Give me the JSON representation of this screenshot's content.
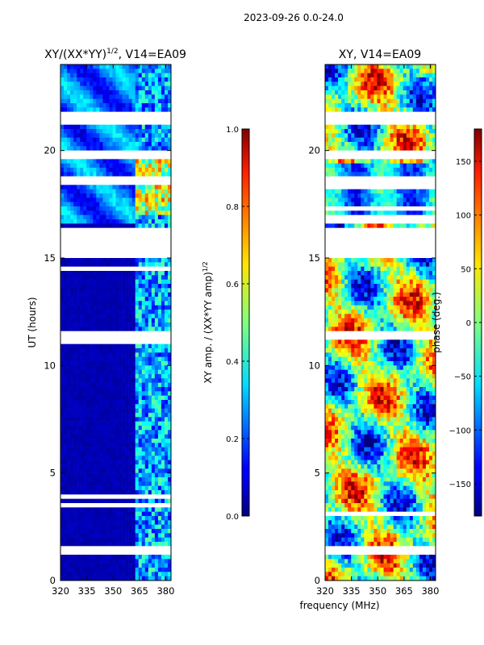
{
  "figure": {
    "suptitle": "2023-09-26 0.0-24.0",
    "xlabel": "frequency (MHz)"
  },
  "chart_data": [
    {
      "type": "heatmap",
      "title": "XY/(XX*YY)",
      "title_exponent": "1/2",
      "title_suffix": ", V14=EA09",
      "xlabel": "",
      "ylabel": "UT (hours)",
      "xlim": [
        320,
        383
      ],
      "ylim": [
        0,
        24
      ],
      "xticks": [
        "320",
        "335",
        "350",
        "365",
        "380"
      ],
      "xtick_values": [
        320,
        335,
        350,
        365,
        380
      ],
      "yticks": [
        "0",
        "5",
        "10",
        "15",
        "20"
      ],
      "ytick_values": [
        0,
        5,
        10,
        15,
        20
      ],
      "colorbar": {
        "label": "XY amp. / (XX*YY amp)",
        "label_exponent": "1/2",
        "range": [
          0.0,
          1.0
        ],
        "ticks": [
          "0.0",
          "0.2",
          "0.4",
          "0.6",
          "0.8",
          "1.0"
        ],
        "tick_values": [
          0.0,
          0.2,
          0.4,
          0.6,
          0.8,
          1.0
        ],
        "colormap": "jet"
      },
      "flagged_ut_gaps": [
        [
          15.0,
          16.3
        ],
        [
          1.2,
          1.6
        ],
        [
          11.2,
          11.5
        ],
        [
          21.2,
          21.7
        ],
        [
          19.7,
          19.9
        ],
        [
          18.5,
          18.8
        ]
      ],
      "rfi_band_mhz": [
        362,
        383
      ]
    },
    {
      "type": "heatmap",
      "title": "XY, V14=EA09",
      "xlabel": "",
      "ylabel": "",
      "xlim": [
        320,
        383
      ],
      "ylim": [
        0,
        24
      ],
      "xticks": [
        "320",
        "335",
        "350",
        "365",
        "380"
      ],
      "xtick_values": [
        320,
        335,
        350,
        365,
        380
      ],
      "yticks": [
        "0",
        "5",
        "10",
        "15",
        "20"
      ],
      "ytick_values": [
        0,
        5,
        10,
        15,
        20
      ],
      "colorbar": {
        "label": "phase (deg.)",
        "range": [
          -180,
          180
        ],
        "ticks": [
          "−150",
          "−100",
          "−50",
          "0",
          "50",
          "100",
          "150"
        ],
        "tick_values": [
          -150,
          -100,
          -50,
          0,
          50,
          100,
          150
        ],
        "colormap": "jet"
      },
      "flagged_ut_gaps": [
        [
          15.0,
          16.3
        ],
        [
          1.2,
          1.6
        ],
        [
          11.2,
          11.5
        ],
        [
          21.2,
          21.7
        ],
        [
          19.7,
          19.9
        ],
        [
          18.5,
          18.8
        ]
      ]
    }
  ],
  "colors": {
    "jet_low": "#00007f",
    "jet_mid": "#7fff7f",
    "jet_high": "#7f0000",
    "axis": "#000000",
    "flag_gap": "#ffffff"
  }
}
